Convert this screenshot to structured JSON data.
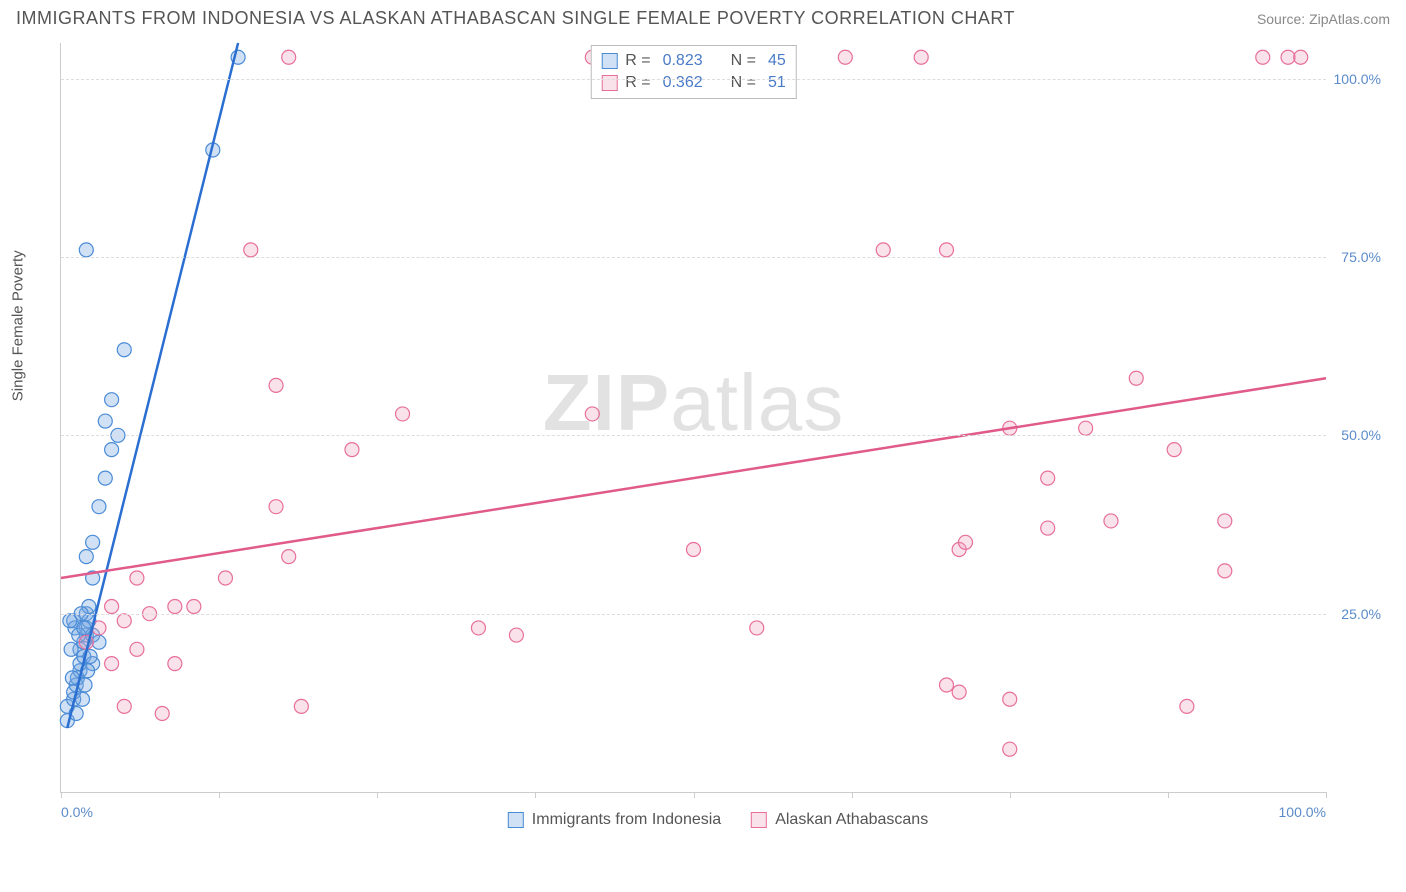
{
  "header": {
    "title": "IMMIGRANTS FROM INDONESIA VS ALASKAN ATHABASCAN SINGLE FEMALE POVERTY CORRELATION CHART",
    "source_label": "Source: ",
    "source_value": "ZipAtlas.com"
  },
  "watermark": {
    "zip": "ZIP",
    "atlas": "atlas"
  },
  "chart": {
    "type": "scatter",
    "y_axis_label": "Single Female Poverty",
    "xlim": [
      0,
      100
    ],
    "ylim": [
      0,
      105
    ],
    "y_ticks": [
      25,
      50,
      75,
      100
    ],
    "y_tick_labels": [
      "25.0%",
      "50.0%",
      "75.0%",
      "100.0%"
    ],
    "x_ticks": [
      0,
      12.5,
      25,
      37.5,
      50,
      62.5,
      75,
      87.5,
      100
    ],
    "x_tick_labels": {
      "0": "0.0%",
      "100": "100.0%"
    },
    "grid_color": "#dddddd",
    "axis_color": "#cccccc",
    "background_color": "#ffffff",
    "marker_radius": 7,
    "marker_stroke_width": 1.2,
    "line_width": 2.5,
    "series": [
      {
        "name": "Immigrants from Indonesia",
        "color_fill": "rgba(120,170,225,0.35)",
        "color_stroke": "#4a8bd6",
        "line_color": "#2b6fd0",
        "R": "0.823",
        "N": "45",
        "trend_line": {
          "x1": 0.5,
          "y1": 9,
          "x2": 14,
          "y2": 105
        },
        "points": [
          [
            0.5,
            12
          ],
          [
            0.5,
            10
          ],
          [
            1,
            13
          ],
          [
            1,
            14
          ],
          [
            1.2,
            15
          ],
          [
            1.3,
            16
          ],
          [
            1.5,
            17
          ],
          [
            1.5,
            18
          ],
          [
            1.5,
            20
          ],
          [
            1.8,
            19
          ],
          [
            1.8,
            21
          ],
          [
            2,
            22
          ],
          [
            2,
            23
          ],
          [
            2,
            25
          ],
          [
            1,
            24
          ],
          [
            2.2,
            24
          ],
          [
            2.5,
            18
          ],
          [
            2.5,
            22
          ],
          [
            2.5,
            30
          ],
          [
            2.2,
            26
          ],
          [
            3,
            21
          ],
          [
            2,
            33
          ],
          [
            2.5,
            35
          ],
          [
            3,
            40
          ],
          [
            3.5,
            44
          ],
          [
            4,
            48
          ],
          [
            4.5,
            50
          ],
          [
            3.5,
            52
          ],
          [
            4,
            55
          ],
          [
            2,
            76
          ],
          [
            5,
            62
          ],
          [
            12,
            90
          ],
          [
            14,
            103
          ],
          [
            1.2,
            11
          ],
          [
            1.7,
            13
          ],
          [
            1.9,
            15
          ],
          [
            2.1,
            17
          ],
          [
            2.3,
            19
          ],
          [
            0.8,
            20
          ],
          [
            1.1,
            23
          ],
          [
            1.4,
            22
          ],
          [
            1.6,
            25
          ],
          [
            1.8,
            23
          ],
          [
            0.7,
            24
          ],
          [
            0.9,
            16
          ]
        ]
      },
      {
        "name": "Alaskan Athabascans",
        "color_fill": "rgba(240,160,190,0.3)",
        "color_stroke": "#e76f9b",
        "line_color": "#e05a8a",
        "R": "0.362",
        "N": "51",
        "trend_line": {
          "x1": 0,
          "y1": 30,
          "x2": 100,
          "y2": 58
        },
        "points": [
          [
            3,
            23
          ],
          [
            4,
            18
          ],
          [
            5,
            24
          ],
          [
            5,
            12
          ],
          [
            6,
            20
          ],
          [
            6,
            30
          ],
          [
            7,
            25
          ],
          [
            8,
            11
          ],
          [
            9,
            18
          ],
          [
            9,
            26
          ],
          [
            10.5,
            26
          ],
          [
            13,
            30
          ],
          [
            15,
            76
          ],
          [
            17,
            40
          ],
          [
            17,
            57
          ],
          [
            18,
            103
          ],
          [
            18,
            33
          ],
          [
            19,
            12
          ],
          [
            23,
            48
          ],
          [
            27,
            53
          ],
          [
            33,
            23
          ],
          [
            36,
            22
          ],
          [
            42,
            103
          ],
          [
            42,
            53
          ],
          [
            50,
            34
          ],
          [
            55,
            23
          ],
          [
            62,
            103
          ],
          [
            65,
            76
          ],
          [
            68,
            103
          ],
          [
            70,
            15
          ],
          [
            70,
            76
          ],
          [
            71,
            14
          ],
          [
            71,
            34
          ],
          [
            71.5,
            35
          ],
          [
            75,
            13
          ],
          [
            75,
            51
          ],
          [
            75,
            6
          ],
          [
            78,
            44
          ],
          [
            78,
            37
          ],
          [
            81,
            51
          ],
          [
            83,
            38
          ],
          [
            85,
            58
          ],
          [
            88,
            48
          ],
          [
            89,
            12
          ],
          [
            92,
            31
          ],
          [
            92,
            38
          ],
          [
            95,
            103
          ],
          [
            97,
            103
          ],
          [
            98,
            103
          ],
          [
            2,
            21
          ],
          [
            4,
            26
          ]
        ]
      }
    ]
  },
  "legend_top": {
    "r_label": "R =",
    "n_label": "N ="
  },
  "legend_bottom": {
    "items": [
      "Immigrants from Indonesia",
      "Alaskan Athabascans"
    ]
  }
}
